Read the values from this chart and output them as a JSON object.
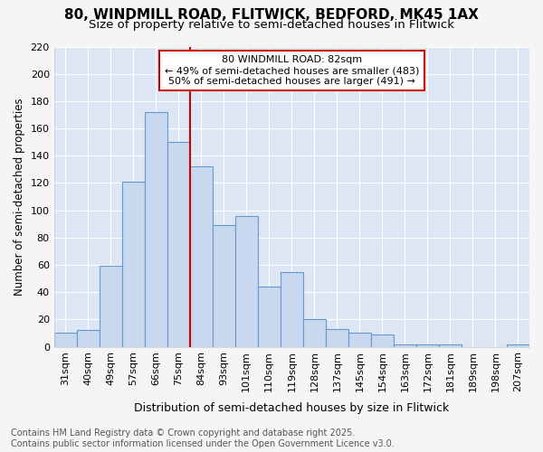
{
  "title1": "80, WINDMILL ROAD, FLITWICK, BEDFORD, MK45 1AX",
  "title2": "Size of property relative to semi-detached houses in Flitwick",
  "xlabel": "Distribution of semi-detached houses by size in Flitwick",
  "ylabel": "Number of semi-detached properties",
  "categories": [
    "31sqm",
    "40sqm",
    "49sqm",
    "57sqm",
    "66sqm",
    "75sqm",
    "84sqm",
    "93sqm",
    "101sqm",
    "110sqm",
    "119sqm",
    "128sqm",
    "137sqm",
    "145sqm",
    "154sqm",
    "163sqm",
    "172sqm",
    "181sqm",
    "189sqm",
    "198sqm",
    "207sqm"
  ],
  "values": [
    10,
    12,
    59,
    121,
    172,
    150,
    132,
    89,
    96,
    44,
    55,
    20,
    13,
    10,
    9,
    2,
    2,
    2,
    0,
    0,
    2
  ],
  "bar_color": "#c8d8ee",
  "bar_edge_color": "#6699cc",
  "highlight_index": 6,
  "highlight_color": "#cc0000",
  "annotation_text": "80 WINDMILL ROAD: 82sqm\n← 49% of semi-detached houses are smaller (483)\n50% of semi-detached houses are larger (491) →",
  "annotation_box_color": "#ffffff",
  "annotation_box_edge": "#cc0000",
  "ylim": [
    0,
    220
  ],
  "yticks": [
    0,
    20,
    40,
    60,
    80,
    100,
    120,
    140,
    160,
    180,
    200,
    220
  ],
  "plot_bg_color": "#dce6f5",
  "fig_bg_color": "#f5f5f5",
  "footer_text": "Contains HM Land Registry data © Crown copyright and database right 2025.\nContains public sector information licensed under the Open Government Licence v3.0.",
  "title1_fontsize": 11,
  "title2_fontsize": 9.5,
  "xlabel_fontsize": 9,
  "ylabel_fontsize": 8.5,
  "tick_fontsize": 8,
  "footer_fontsize": 7
}
